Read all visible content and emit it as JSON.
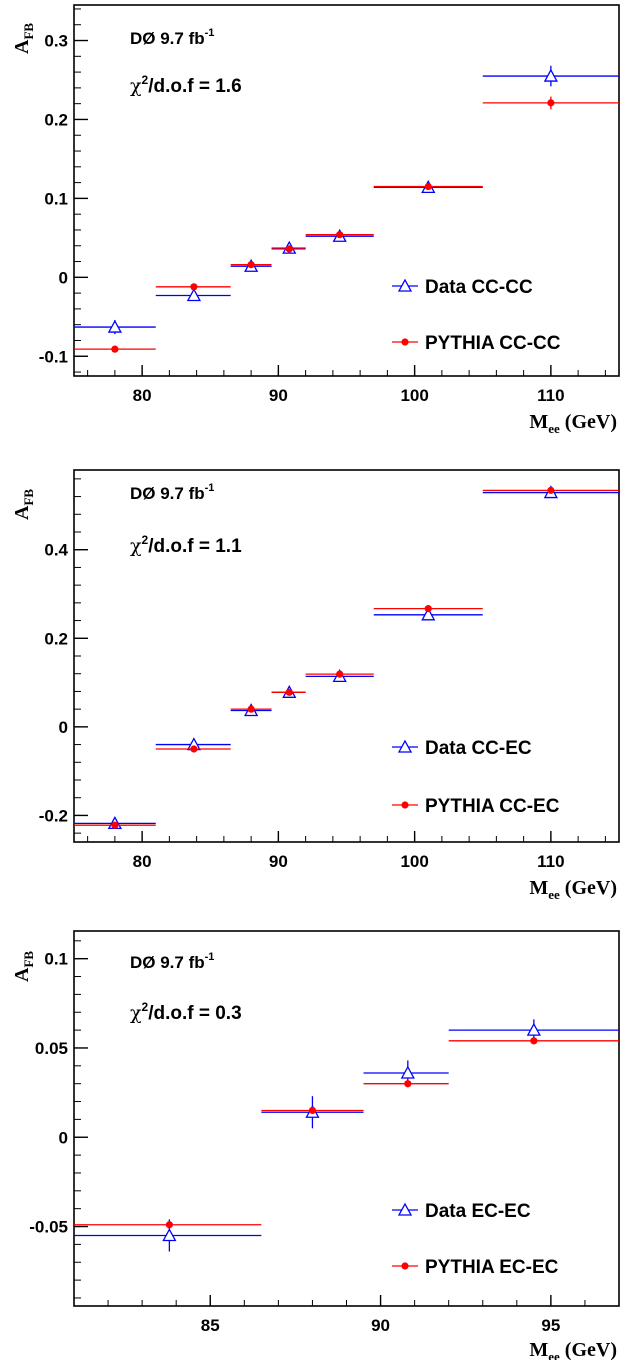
{
  "colors": {
    "data": "#0000ff",
    "mc": "#ff0000",
    "axis": "#000000"
  },
  "chart_data": [
    {
      "type": "scatter",
      "experiment": "DØ 9.7 fb",
      "lumi_sup": "-1",
      "chi2_text": "/d.o.f = 1.6",
      "ylabel_main": "A",
      "ylabel_sub": "FB",
      "xlabel_main": "M",
      "xlabel_sub": "ee",
      "xlabel_unit": " (GeV)",
      "xlim": [
        75,
        115
      ],
      "ylim": [
        -0.125,
        0.345
      ],
      "xticks": [
        80,
        90,
        100,
        110
      ],
      "xtick_labels": [
        "80",
        "90",
        "100",
        "110"
      ],
      "yticks": [
        -0.1,
        0,
        0.1,
        0.2,
        0.3
      ],
      "ytick_labels": [
        "-0.1",
        "0",
        "0.1",
        "0.2",
        "0.3"
      ],
      "series": [
        {
          "name": "Data CC-CC",
          "marker": "open-triangle",
          "points": [
            {
              "x": 78,
              "xlo": 75,
              "xhi": 81,
              "y": -0.063,
              "err": 0.009
            },
            {
              "x": 83.8,
              "xlo": 81,
              "xhi": 86.5,
              "y": -0.023,
              "err": 0.004
            },
            {
              "x": 88,
              "xlo": 86.5,
              "xhi": 89.5,
              "y": 0.014,
              "err": 0.003
            },
            {
              "x": 90.8,
              "xlo": 89.5,
              "xhi": 92,
              "y": 0.037,
              "err": 0.002
            },
            {
              "x": 94.5,
              "xlo": 92,
              "xhi": 97,
              "y": 0.052,
              "err": 0.003
            },
            {
              "x": 101,
              "xlo": 97,
              "xhi": 105,
              "y": 0.114,
              "err": 0.005
            },
            {
              "x": 110,
              "xlo": 105,
              "xhi": 115,
              "y": 0.255,
              "err": 0.013
            }
          ]
        },
        {
          "name": "PYTHIA CC-CC",
          "marker": "filled-circle",
          "points": [
            {
              "x": 78,
              "xlo": 75,
              "xhi": 81,
              "y": -0.091,
              "err": 0.002
            },
            {
              "x": 83.8,
              "xlo": 81,
              "xhi": 86.5,
              "y": -0.012,
              "err": 0.001
            },
            {
              "x": 88,
              "xlo": 86.5,
              "xhi": 89.5,
              "y": 0.016,
              "err": 0.001
            },
            {
              "x": 90.8,
              "xlo": 89.5,
              "xhi": 92,
              "y": 0.036,
              "err": 0.001
            },
            {
              "x": 94.5,
              "xlo": 92,
              "xhi": 97,
              "y": 0.054,
              "err": 0.001
            },
            {
              "x": 101,
              "xlo": 97,
              "xhi": 105,
              "y": 0.115,
              "err": 0.002
            },
            {
              "x": 110,
              "xlo": 105,
              "xhi": 115,
              "y": 0.221,
              "err": 0.008
            }
          ]
        }
      ]
    },
    {
      "type": "scatter",
      "experiment": "DØ 9.7 fb",
      "lumi_sup": "-1",
      "chi2_text": "/d.o.f = 1.1",
      "ylabel_main": "A",
      "ylabel_sub": "FB",
      "xlabel_main": "M",
      "xlabel_sub": "ee",
      "xlabel_unit": " (GeV)",
      "xlim": [
        75,
        115
      ],
      "ylim": [
        -0.26,
        0.58
      ],
      "xticks": [
        80,
        90,
        100,
        110
      ],
      "xtick_labels": [
        "80",
        "90",
        "100",
        "110"
      ],
      "yticks": [
        -0.2,
        0,
        0.2,
        0.4
      ],
      "ytick_labels": [
        "-0.2",
        "0",
        "0.2",
        "0.4"
      ],
      "series": [
        {
          "name": "Data CC-EC",
          "marker": "open-triangle",
          "points": [
            {
              "x": 78,
              "xlo": 75,
              "xhi": 81,
              "y": -0.218,
              "err": 0.006
            },
            {
              "x": 83.8,
              "xlo": 81,
              "xhi": 86.5,
              "y": -0.04,
              "err": 0.005
            },
            {
              "x": 88,
              "xlo": 86.5,
              "xhi": 89.5,
              "y": 0.037,
              "err": 0.003
            },
            {
              "x": 90.8,
              "xlo": 89.5,
              "xhi": 92,
              "y": 0.078,
              "err": 0.002
            },
            {
              "x": 94.5,
              "xlo": 92,
              "xhi": 97,
              "y": 0.114,
              "err": 0.003
            },
            {
              "x": 101,
              "xlo": 97,
              "xhi": 105,
              "y": 0.253,
              "err": 0.007
            },
            {
              "x": 110,
              "xlo": 105,
              "xhi": 115,
              "y": 0.529,
              "err": 0.01
            }
          ]
        },
        {
          "name": "PYTHIA CC-EC",
          "marker": "filled-circle",
          "points": [
            {
              "x": 78,
              "xlo": 75,
              "xhi": 81,
              "y": -0.222,
              "err": 0.002
            },
            {
              "x": 83.8,
              "xlo": 81,
              "xhi": 86.5,
              "y": -0.05,
              "err": 0.002
            },
            {
              "x": 88,
              "xlo": 86.5,
              "xhi": 89.5,
              "y": 0.04,
              "err": 0.001
            },
            {
              "x": 90.8,
              "xlo": 89.5,
              "xhi": 92,
              "y": 0.078,
              "err": 0.001
            },
            {
              "x": 94.5,
              "xlo": 92,
              "xhi": 97,
              "y": 0.119,
              "err": 0.001
            },
            {
              "x": 101,
              "xlo": 97,
              "xhi": 105,
              "y": 0.267,
              "err": 0.003
            },
            {
              "x": 110,
              "xlo": 105,
              "xhi": 115,
              "y": 0.534,
              "err": 0.004
            }
          ]
        }
      ]
    },
    {
      "type": "scatter",
      "experiment": "DØ 9.7 fb",
      "lumi_sup": "-1",
      "chi2_text": "/d.o.f = 0.3",
      "ylabel_main": "A",
      "ylabel_sub": "FB",
      "xlabel_main": "M",
      "xlabel_sub": "ee",
      "xlabel_unit": " (GeV)",
      "xlim": [
        81,
        97
      ],
      "ylim": [
        -0.0945,
        0.1155
      ],
      "xticks": [
        85,
        90,
        95
      ],
      "xtick_labels": [
        "85",
        "90",
        "95"
      ],
      "yticks": [
        -0.05,
        0,
        0.05,
        0.1
      ],
      "ytick_labels": [
        "-0.05",
        "0",
        "0.05",
        "0.1"
      ],
      "series": [
        {
          "name": "Data EC-EC",
          "marker": "open-triangle",
          "points": [
            {
              "x": 83.8,
              "xlo": 81,
              "xhi": 86.5,
              "y": -0.055,
              "err": 0.009
            },
            {
              "x": 88,
              "xlo": 86.5,
              "xhi": 89.5,
              "y": 0.014,
              "err": 0.009
            },
            {
              "x": 90.8,
              "xlo": 89.5,
              "xhi": 92,
              "y": 0.036,
              "err": 0.007
            },
            {
              "x": 94.5,
              "xlo": 92,
              "xhi": 97,
              "y": 0.06,
              "err": 0.006
            }
          ]
        },
        {
          "name": "PYTHIA EC-EC",
          "marker": "filled-circle",
          "points": [
            {
              "x": 83.8,
              "xlo": 81,
              "xhi": 86.5,
              "y": -0.049,
              "err": 0.002
            },
            {
              "x": 88,
              "xlo": 86.5,
              "xhi": 89.5,
              "y": 0.015,
              "err": 0.002
            },
            {
              "x": 90.8,
              "xlo": 89.5,
              "xhi": 92,
              "y": 0.03,
              "err": 0.002
            },
            {
              "x": 94.5,
              "xlo": 92,
              "xhi": 97,
              "y": 0.054,
              "err": 0.002
            }
          ]
        }
      ]
    }
  ]
}
